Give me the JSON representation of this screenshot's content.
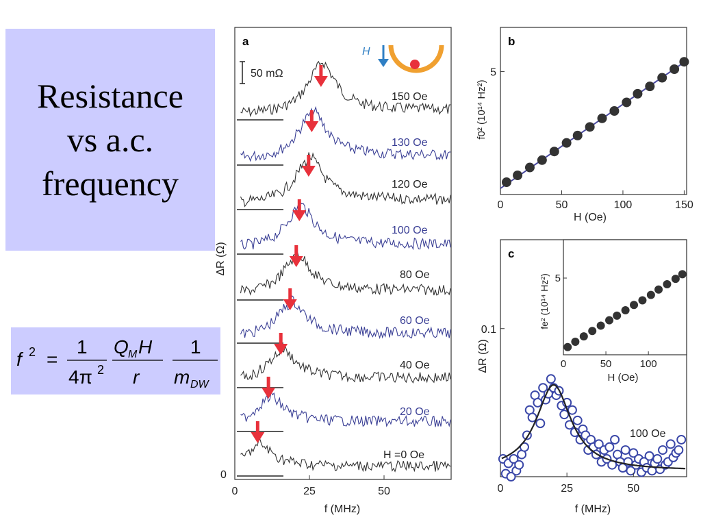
{
  "slide": {
    "title_lines": [
      "Resistance",
      "vs a.c.",
      "frequency"
    ]
  },
  "formula": {
    "lhs": "f",
    "lhs_exp": "2",
    "eq": "=",
    "frac1_num": "1",
    "frac1_den": "4π",
    "frac1_den_exp": "2",
    "frac2_num_Q": "Q",
    "frac2_num_Q_sub": "M",
    "frac2_num_H": "H",
    "frac2_den": "r",
    "frac3_num": "1",
    "frac3_den": "m",
    "frac3_den_sub": "DW"
  },
  "colors": {
    "black_trace": "#333333",
    "blue_trace": "#3a3f95",
    "arrow_red": "#e8313b",
    "blue_arrow": "#2f7fc4",
    "orange_track": "#f0a030",
    "dot_red": "#e8313b",
    "fit_line_b": "#4a4aa0",
    "marker_fill": "#333333",
    "open_marker": "#3a47a8"
  },
  "chart_data": [
    {
      "panel": "a",
      "type": "line",
      "xlabel": "f (MHz)",
      "ylabel": "ΔR (Ω)",
      "x_ticks": [
        0,
        25,
        50
      ],
      "xlim": [
        0,
        70
      ],
      "y_tick_zero": "0",
      "scale_bar_label": "50  mΩ",
      "inset_field_label": "H",
      "series": [
        {
          "name": "150 Oe",
          "field_oe": 150,
          "peak_mhz": 27,
          "color": "black"
        },
        {
          "name": "130 Oe",
          "field_oe": 130,
          "peak_mhz": 24,
          "color": "blue"
        },
        {
          "name": "120 Oe",
          "field_oe": 120,
          "peak_mhz": 23,
          "color": "black"
        },
        {
          "name": "100 Oe",
          "field_oe": 100,
          "peak_mhz": 20,
          "color": "blue"
        },
        {
          "name": "80 Oe",
          "field_oe": 80,
          "peak_mhz": 19,
          "color": "black"
        },
        {
          "name": "60 Oe",
          "field_oe": 60,
          "peak_mhz": 17,
          "color": "blue"
        },
        {
          "name": "40 Oe",
          "field_oe": 40,
          "peak_mhz": 14,
          "color": "black"
        },
        {
          "name": "20 Oe",
          "field_oe": 20,
          "peak_mhz": 10,
          "color": "blue"
        },
        {
          "name": "H =0 Oe",
          "field_oe": 0,
          "peak_mhz": 6.5,
          "color": "black"
        }
      ]
    },
    {
      "panel": "b",
      "type": "scatter",
      "xlabel": "H (Oe)",
      "ylabel": "f0² (10¹⁴ Hz²)",
      "x_ticks": [
        0,
        50,
        100,
        150
      ],
      "y_ticks": [
        5
      ],
      "xlim": [
        0,
        152
      ],
      "ylim": [
        0,
        6.8
      ],
      "x": [
        5,
        14,
        24,
        34,
        44,
        54,
        63,
        73,
        83,
        93,
        103,
        112,
        122,
        132,
        142,
        150
      ],
      "y": [
        0.5,
        0.78,
        1.1,
        1.4,
        1.75,
        2.1,
        2.4,
        2.75,
        3.1,
        3.4,
        3.75,
        4.1,
        4.4,
        4.75,
        5.1,
        5.4
      ],
      "fit_line": {
        "x": [
          0,
          152
        ],
        "y": [
          0.25,
          5.45
        ]
      }
    },
    {
      "panel": "c",
      "type": "scatter",
      "xlabel": "f (MHz)",
      "ylabel": "ΔR (Ω)",
      "x_ticks": [
        0,
        25,
        50
      ],
      "y_ticks": [
        0.1
      ],
      "xlim": [
        0,
        70
      ],
      "ylim": [
        0,
        0.16
      ],
      "annotation": "100 Oe",
      "x": [
        1,
        2,
        3,
        4,
        5,
        6,
        7,
        8,
        9,
        10,
        11,
        12,
        13,
        14,
        15,
        16,
        17,
        18,
        19,
        20,
        21,
        22,
        23,
        24,
        25,
        26,
        27,
        28,
        29,
        30,
        31,
        32,
        33,
        34,
        35,
        36,
        37,
        38,
        39,
        40,
        41,
        42,
        43,
        44,
        45,
        46,
        47,
        48,
        49,
        50,
        51,
        52,
        53,
        54,
        55,
        56,
        57,
        58,
        59,
        60,
        61,
        62,
        63,
        64,
        65,
        66,
        67,
        68
      ],
      "y": [
        0.012,
        0.002,
        0.009,
        0.0,
        0.012,
        0.004,
        0.008,
        0.015,
        0.02,
        0.028,
        0.045,
        0.04,
        0.055,
        0.05,
        0.036,
        0.06,
        0.052,
        0.056,
        0.066,
        0.06,
        0.055,
        0.058,
        0.048,
        0.042,
        0.05,
        0.035,
        0.045,
        0.03,
        0.038,
        0.025,
        0.032,
        0.028,
        0.018,
        0.025,
        0.02,
        0.015,
        0.022,
        0.01,
        0.018,
        0.012,
        0.02,
        0.008,
        0.025,
        0.015,
        0.01,
        0.006,
        0.018,
        0.01,
        0.004,
        0.016,
        0.008,
        0.012,
        0.003,
        0.01,
        0.006,
        0.014,
        0.004,
        0.009,
        0.012,
        0.005,
        0.018,
        0.008,
        0.01,
        0.022,
        0.013,
        0.016,
        0.018,
        0.025
      ],
      "fit_curve": {
        "form": "lorentzian",
        "center_mhz": 20,
        "peak": 0.058,
        "width_mhz": 8,
        "baseline": 0.004
      },
      "inset": {
        "type": "scatter",
        "xlabel": "H (Oe)",
        "ylabel": "fe² (10¹⁴ Hz²)",
        "x_ticks": [
          0,
          50,
          100
        ],
        "y_ticks": [
          5
        ],
        "xlim": [
          0,
          145
        ],
        "ylim": [
          0,
          7.5
        ],
        "x": [
          5,
          14,
          24,
          34,
          44,
          54,
          63,
          73,
          83,
          93,
          103,
          112,
          122,
          132,
          140
        ],
        "y": [
          0.5,
          0.85,
          1.2,
          1.55,
          1.9,
          2.25,
          2.55,
          2.9,
          3.25,
          3.55,
          3.9,
          4.25,
          4.6,
          4.95,
          5.25
        ]
      }
    }
  ]
}
